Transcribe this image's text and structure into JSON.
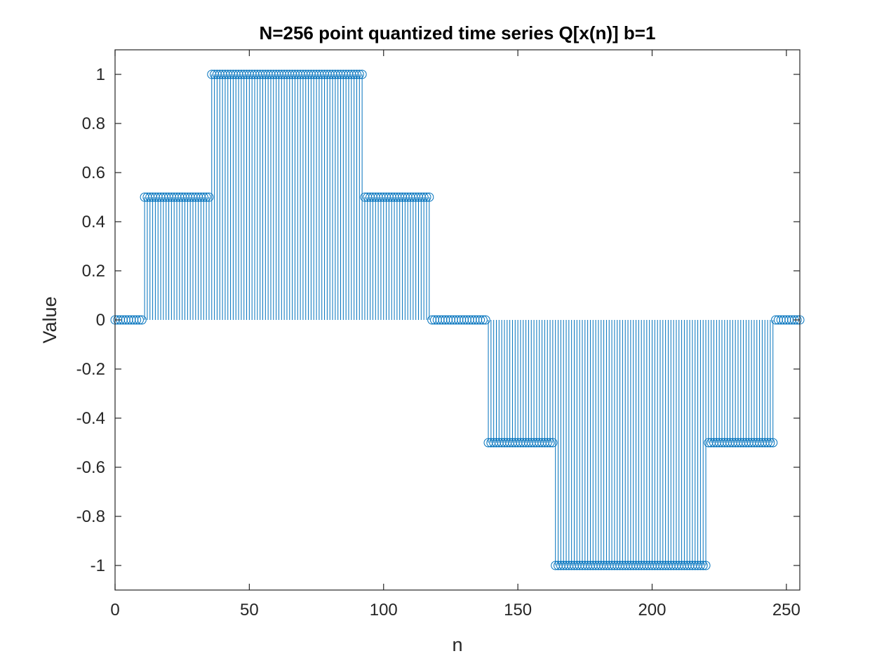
{
  "chart_data": {
    "type": "stem",
    "title": "N=256 point quantized time series Q[x(n)] b=1",
    "xlabel": "n",
    "ylabel": "Value",
    "xlim": [
      0,
      255
    ],
    "ylim": [
      -1.1,
      1.1
    ],
    "xticks": [
      0,
      50,
      100,
      150,
      200,
      250
    ],
    "xtick_labels": [
      "0",
      "50",
      "100",
      "150",
      "200",
      "250"
    ],
    "yticks": [
      -1,
      -0.8,
      -0.6,
      -0.4,
      -0.2,
      0,
      0.2,
      0.4,
      0.6,
      0.8,
      1
    ],
    "ytick_labels": [
      "-1",
      "-0.8",
      "-0.6",
      "-0.4",
      "-0.2",
      "0",
      "0.2",
      "0.4",
      "0.6",
      "0.8",
      "1"
    ],
    "grid": false,
    "box": true,
    "marker": "circle",
    "color": "#0072BD",
    "segments": [
      {
        "from": 0,
        "to": 10,
        "value": 0
      },
      {
        "from": 11,
        "to": 35,
        "value": 0.5
      },
      {
        "from": 36,
        "to": 92,
        "value": 1
      },
      {
        "from": 93,
        "to": 117,
        "value": 0.5
      },
      {
        "from": 118,
        "to": 138,
        "value": 0
      },
      {
        "from": 139,
        "to": 163,
        "value": -0.5
      },
      {
        "from": 164,
        "to": 220,
        "value": -1
      },
      {
        "from": 221,
        "to": 245,
        "value": -0.5
      },
      {
        "from": 246,
        "to": 255,
        "value": 0
      }
    ]
  }
}
